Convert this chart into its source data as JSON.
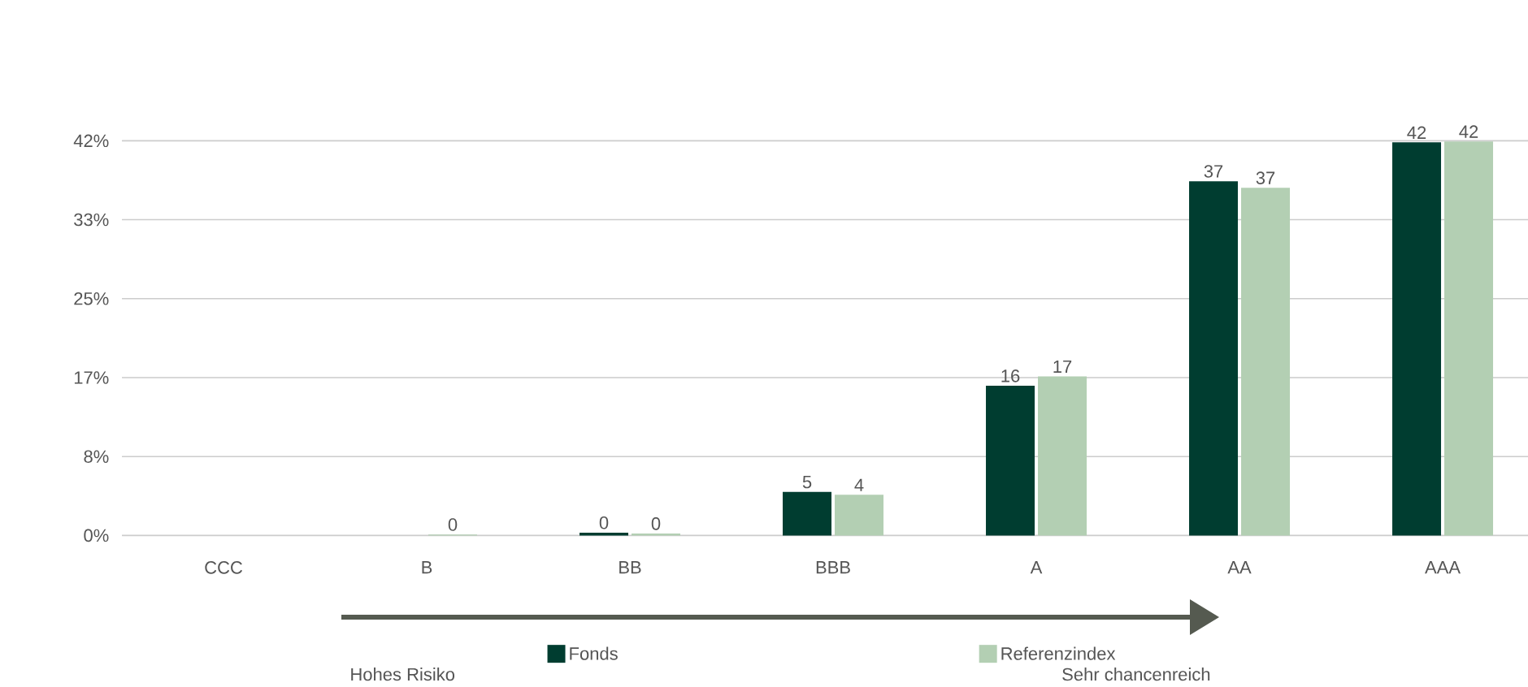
{
  "chart_data": {
    "type": "bar",
    "categories": [
      "CCC",
      "B",
      "BB",
      "BBB",
      "A",
      "AA",
      "AAA"
    ],
    "series": [
      {
        "name": "Fonds",
        "color": "#003d30",
        "values": [
          0,
          0,
          0.3,
          4.6,
          15.8,
          37.4,
          41.5
        ],
        "value_labels": [
          null,
          null,
          "0",
          "5",
          "16",
          "37",
          "42"
        ]
      },
      {
        "name": "Referenzindex",
        "color": "#b3cfb3",
        "values": [
          0,
          0.1,
          0.2,
          4.3,
          16.8,
          36.7,
          41.6
        ],
        "value_labels": [
          null,
          "0",
          "0",
          "4",
          "17",
          "37",
          "42"
        ]
      }
    ],
    "ylim": [
      0,
      41.667
    ],
    "yticks": [
      {
        "value": 0,
        "label": "0%"
      },
      {
        "value": 8.333,
        "label": "8%"
      },
      {
        "value": 16.667,
        "label": "17%"
      },
      {
        "value": 25,
        "label": "25%"
      },
      {
        "value": 33.333,
        "label": "33%"
      },
      {
        "value": 41.667,
        "label": "42%"
      }
    ],
    "grid": "y",
    "legend": "bottom",
    "annotations": [
      "Hohes Risiko",
      "Sehr chancenreich"
    ]
  }
}
